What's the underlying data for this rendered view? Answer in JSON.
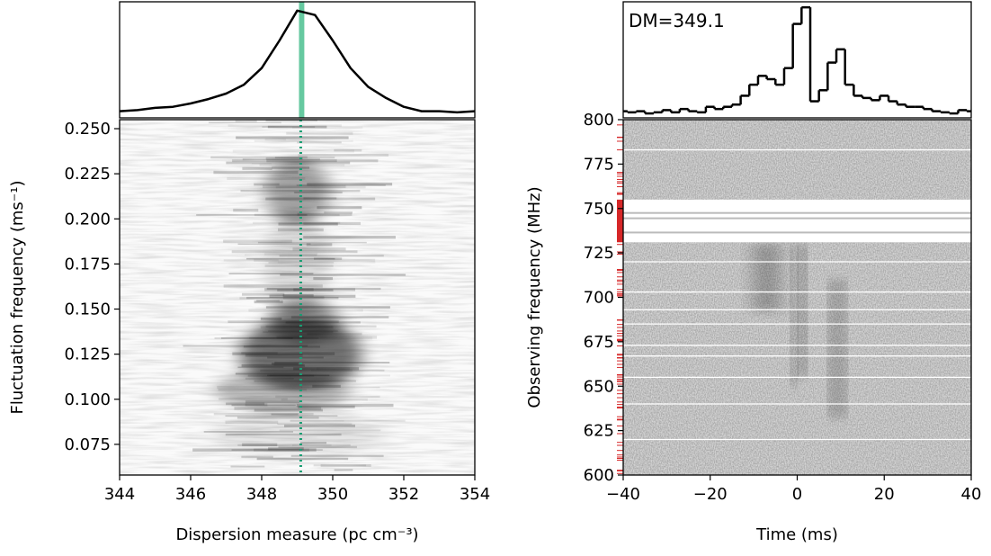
{
  "chart_data": [
    {
      "type": "line",
      "color": "#000000",
      "x": [
        344,
        344.5,
        345,
        345.5,
        346,
        346.5,
        347,
        347.5,
        348,
        348.5,
        349,
        349.5,
        350,
        350.5,
        351,
        351.5,
        352,
        352.5,
        353,
        353.5,
        354
      ],
      "values": [
        0.06,
        0.07,
        0.09,
        0.1,
        0.13,
        0.17,
        0.22,
        0.3,
        0.45,
        0.7,
        0.97,
        0.93,
        0.7,
        0.45,
        0.28,
        0.18,
        0.1,
        0.06,
        0.06,
        0.05,
        0.06
      ],
      "xlim": [
        344,
        354
      ],
      "ylim": [
        0,
        1.05
      ],
      "band": [
        349.05,
        349.2
      ],
      "band_color": "#66c9a0"
    },
    {
      "type": "heatmap",
      "xlim": [
        344,
        354
      ],
      "ylim": [
        0.058,
        0.255
      ],
      "xticks": [
        344,
        346,
        348,
        350,
        352,
        354
      ],
      "yticks": [
        0.075,
        {
          "value": 0.1,
          "label": "0.100"
        },
        0.125,
        {
          "value": 0.15,
          "label": "0.150"
        },
        0.175,
        {
          "value": 0.2,
          "label": "0.200"
        },
        0.225,
        {
          "value": 0.25,
          "label": "0.250"
        }
      ],
      "xlabel": "Dispersion measure (pc cm⁻³)",
      "ylabel": "Fluctuation frequency (ms⁻¹)",
      "marker_x": 349.1,
      "marker_color": "#1a9e73"
    },
    {
      "type": "step",
      "color": "#000000",
      "x": [
        -40,
        -38,
        -36,
        -34,
        -32,
        -30,
        -28,
        -26,
        -24,
        -22,
        -20,
        -18,
        -16,
        -14,
        -12,
        -10,
        -8,
        -6,
        -4,
        -2,
        0,
        2,
        4,
        6,
        8,
        10,
        12,
        14,
        16,
        18,
        20,
        22,
        24,
        26,
        28,
        30,
        32,
        34,
        36,
        38,
        40
      ],
      "values": [
        0.06,
        0.05,
        0.06,
        0.04,
        0.05,
        0.07,
        0.05,
        0.08,
        0.06,
        0.05,
        0.1,
        0.08,
        0.1,
        0.12,
        0.2,
        0.3,
        0.38,
        0.35,
        0.3,
        0.45,
        0.85,
        1.0,
        0.15,
        0.25,
        0.5,
        0.62,
        0.3,
        0.2,
        0.18,
        0.16,
        0.2,
        0.15,
        0.12,
        0.1,
        0.1,
        0.08,
        0.06,
        0.05,
        0.04,
        0.07,
        0.06
      ],
      "xlim": [
        -40,
        40
      ],
      "ylim": [
        0,
        1.05
      ],
      "annotation": "DM=349.1",
      "annotation_color": "#1a9e73"
    },
    {
      "type": "heatmap",
      "xlim": [
        -40,
        40
      ],
      "ylim": [
        600,
        800
      ],
      "xticks": [
        {
          "value": -40,
          "label": "−40"
        },
        {
          "value": -20,
          "label": "−20"
        },
        0,
        20,
        40
      ],
      "yticks": [
        600,
        625,
        650,
        675,
        700,
        725,
        750,
        775,
        800
      ],
      "xlabel": "Time (ms)",
      "ylabel": "Observing frequency (MHz)"
    }
  ]
}
